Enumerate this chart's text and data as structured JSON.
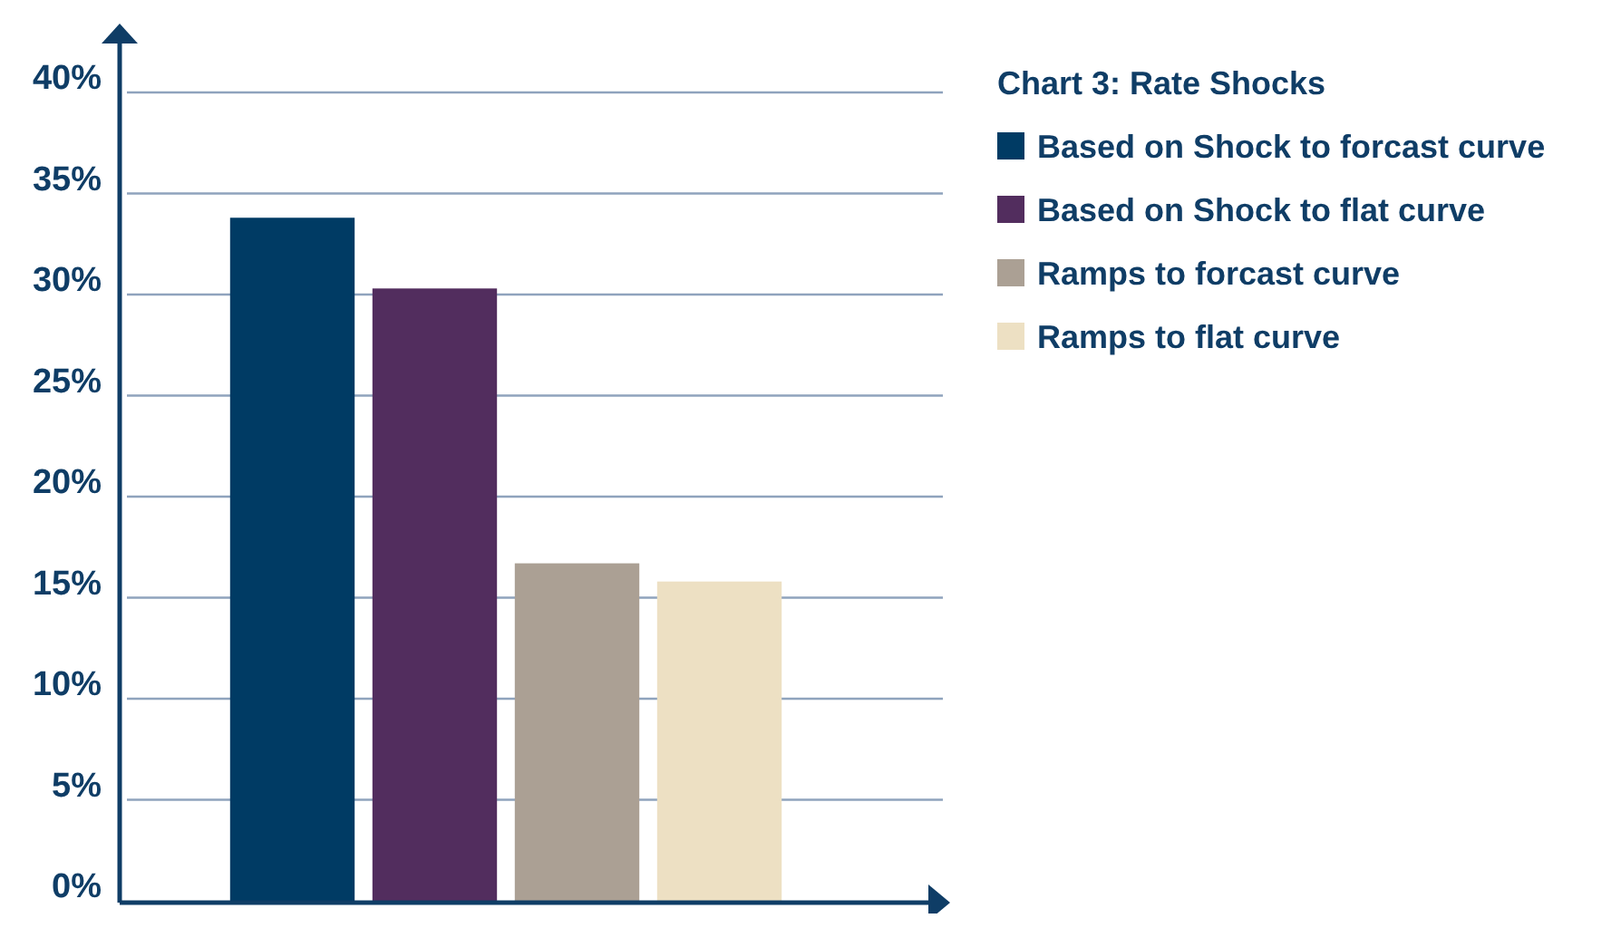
{
  "chart_data": {
    "type": "bar",
    "legend_title": "Chart 3: Rate Shocks",
    "categories": [
      null
    ],
    "series": [
      {
        "name": "Based on Shock to forcast curve",
        "color": "#003b64",
        "values": [
          33.8
        ]
      },
      {
        "name": "Based on Shock to flat curve",
        "color": "#522d5e",
        "values": [
          30.3
        ]
      },
      {
        "name": "Ramps to forcast curve",
        "color": "#aba094",
        "values": [
          16.7
        ]
      },
      {
        "name": "Ramps to flat curve",
        "color": "#ede0c3",
        "values": [
          15.8
        ]
      }
    ],
    "ylim": [
      0,
      40
    ],
    "yticks": [
      {
        "value": 0,
        "label": "0%"
      },
      {
        "value": 5,
        "label": "5%"
      },
      {
        "value": 10,
        "label": "10%"
      },
      {
        "value": 15,
        "label": "15%"
      },
      {
        "value": 20,
        "label": "20%"
      },
      {
        "value": 25,
        "label": "25%"
      },
      {
        "value": 30,
        "label": "30%"
      },
      {
        "value": 35,
        "label": "35%"
      },
      {
        "value": 40,
        "label": "40%"
      }
    ],
    "grid": "y",
    "legend": "top right"
  }
}
